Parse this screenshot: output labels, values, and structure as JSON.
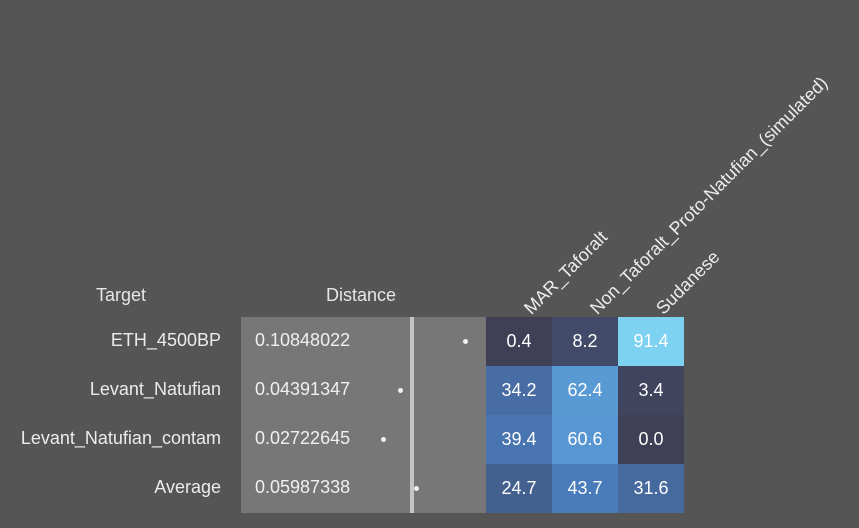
{
  "headers": {
    "target": "Target",
    "distance": "Distance"
  },
  "chart_data": {
    "type": "heatmap",
    "columns": [
      "MAR_Taforalt",
      "Non_Taforalt_Proto-Natufian_(simulated)",
      "Sudanese"
    ],
    "rows": [
      {
        "target": "ETH_4500BP",
        "distance": 0.10848022,
        "distance_label": "0.10848022",
        "values": [
          "0.4",
          "8.2",
          "91.4"
        ]
      },
      {
        "target": "Levant_Natufian",
        "distance": 0.04391347,
        "distance_label": "0.04391347",
        "values": [
          "34.2",
          "62.4",
          "3.4"
        ]
      },
      {
        "target": "Levant_Natufian_contam",
        "distance": 0.02722645,
        "distance_label": "0.02722645",
        "values": [
          "39.4",
          "60.6",
          "0.0"
        ]
      },
      {
        "target": "Average",
        "distance": 0.05987338,
        "distance_label": "0.05987338",
        "values": [
          "24.7",
          "43.7",
          "31.6"
        ]
      }
    ],
    "colors": {
      "background": "#555555",
      "distance_panel": "#777777",
      "low": "#3f3f55",
      "mid": "#4a82c8",
      "high": "#87e1f9"
    }
  }
}
